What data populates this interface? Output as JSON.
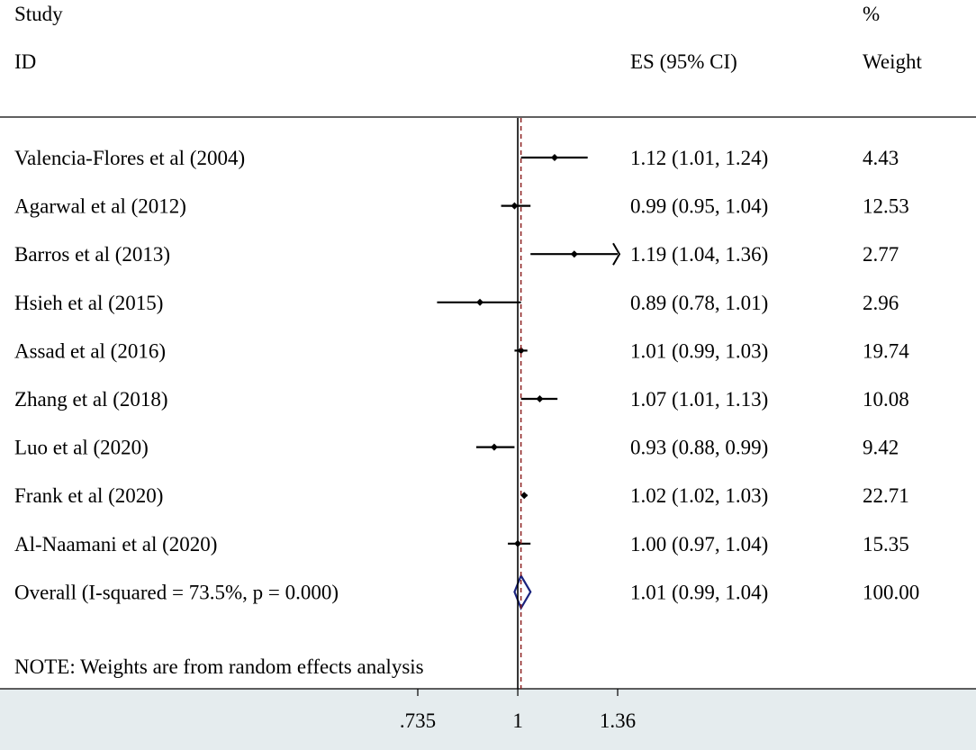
{
  "header": {
    "study_line1": "Study",
    "study_line2": "ID",
    "es_label": "ES (95% CI)",
    "weight_line1": "%",
    "weight_line2": "Weight"
  },
  "note": "NOTE: Weights are from random effects analysis",
  "colors": {
    "marker": "#000000",
    "ci_line": "#000000",
    "null_line": "#000000",
    "overall_line": "#8b1a1a",
    "diamond": "#1a237e",
    "axis_band": "#e5ecee"
  },
  "chart_data": {
    "type": "forest",
    "x_scale": "log",
    "xlim": [
      0.735,
      1.36
    ],
    "xticks": [
      0.735,
      1,
      1.36
    ],
    "xtick_labels": [
      ".735",
      "1",
      "1.36"
    ],
    "null_value": 1,
    "studies": [
      {
        "name": "Valencia-Flores et al (2004)",
        "es": 1.12,
        "lo": 1.01,
        "hi": 1.24,
        "es_text": "1.12 (1.01, 1.24)",
        "weight_text": "4.43"
      },
      {
        "name": "Agarwal et al (2012)",
        "es": 0.99,
        "lo": 0.95,
        "hi": 1.04,
        "es_text": "0.99 (0.95, 1.04)",
        "weight_text": "12.53"
      },
      {
        "name": "Barros et al (2013)",
        "es": 1.19,
        "lo": 1.04,
        "hi": 1.36,
        "es_text": "1.19 (1.04, 1.36)",
        "weight_text": "2.77",
        "arrow_right": true
      },
      {
        "name": "Hsieh et al (2015)",
        "es": 0.89,
        "lo": 0.78,
        "hi": 1.01,
        "es_text": "0.89 (0.78, 1.01)",
        "weight_text": "2.96"
      },
      {
        "name": "Assad et al (2016)",
        "es": 1.01,
        "lo": 0.99,
        "hi": 1.03,
        "es_text": "1.01 (0.99, 1.03)",
        "weight_text": "19.74"
      },
      {
        "name": "Zhang et al (2018)",
        "es": 1.07,
        "lo": 1.01,
        "hi": 1.13,
        "es_text": "1.07 (1.01, 1.13)",
        "weight_text": "10.08"
      },
      {
        "name": "Luo et al (2020)",
        "es": 0.93,
        "lo": 0.88,
        "hi": 0.99,
        "es_text": "0.93 (0.88, 0.99)",
        "weight_text": "9.42"
      },
      {
        "name": "Frank et al (2020)",
        "es": 1.02,
        "lo": 1.02,
        "hi": 1.03,
        "es_text": "1.02 (1.02, 1.03)",
        "weight_text": "22.71"
      },
      {
        "name": "Al-Naamani et al (2020)",
        "es": 1.0,
        "lo": 0.97,
        "hi": 1.04,
        "es_text": "1.00 (0.97, 1.04)",
        "weight_text": "15.35"
      }
    ],
    "overall": {
      "name": "Overall  (I-squared = 73.5%, p = 0.000)",
      "es": 1.01,
      "lo": 0.99,
      "hi": 1.04,
      "es_text": "1.01 (0.99, 1.04)",
      "weight_text": "100.00"
    }
  }
}
